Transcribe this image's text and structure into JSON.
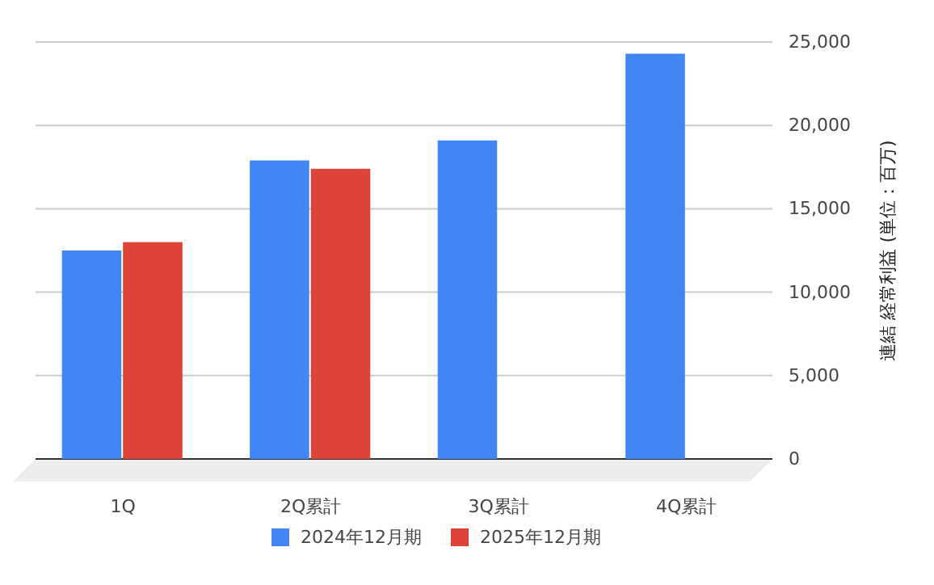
{
  "chart_data": {
    "type": "bar",
    "ylabel": "連結 経常利益 (単位：百万)",
    "categories": [
      "1Q",
      "2Q累計",
      "3Q累計",
      "4Q累計"
    ],
    "series": [
      {
        "name": "2024年12月期",
        "color": "#4285f4",
        "values": [
          12500,
          17900,
          19100,
          24300
        ]
      },
      {
        "name": "2025年12月期",
        "color": "#db4437",
        "values": [
          13000,
          17400,
          null,
          null
        ]
      }
    ],
    "ylim": [
      0,
      25000
    ],
    "yticks": [
      {
        "value": 0,
        "label": "0"
      },
      {
        "value": 5000,
        "label": "5,000"
      },
      {
        "value": 10000,
        "label": "10,000"
      },
      {
        "value": 15000,
        "label": "15,000"
      },
      {
        "value": 20000,
        "label": "20,000"
      },
      {
        "value": 25000,
        "label": "25,000"
      }
    ],
    "grid": true,
    "legend": "bottom"
  }
}
